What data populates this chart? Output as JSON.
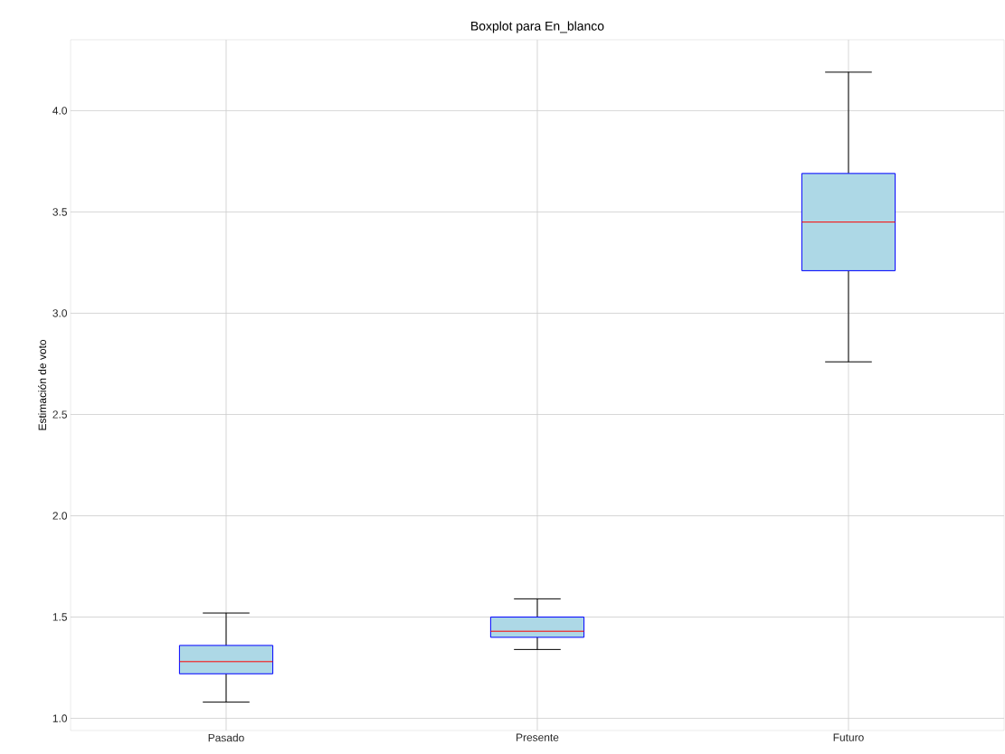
{
  "chart_data": {
    "type": "box",
    "title": "Boxplot para En_blanco",
    "ylabel": "Estimación de voto",
    "categories": [
      "Pasado",
      "Presente",
      "Futuro"
    ],
    "series": [
      {
        "color": "#add8e6",
        "boxes": [
          {
            "low": 1.08,
            "q1": 1.22,
            "median": 1.28,
            "q3": 1.36,
            "high": 1.52
          },
          {
            "low": 1.34,
            "q1": 1.4,
            "median": 1.43,
            "q3": 1.5,
            "high": 1.59
          },
          {
            "low": 2.76,
            "q1": 3.21,
            "median": 3.45,
            "q3": 3.69,
            "high": 4.19
          }
        ]
      }
    ],
    "ylim": [
      0.94,
      4.35
    ],
    "yticks": [
      {
        "value": 1.0,
        "label": "1.0"
      },
      {
        "value": 1.5,
        "label": "1.5"
      },
      {
        "value": 2.0,
        "label": "2.0"
      },
      {
        "value": 2.5,
        "label": "2.5"
      },
      {
        "value": 3.0,
        "label": "3.0"
      },
      {
        "value": 3.5,
        "label": "3.5"
      },
      {
        "value": 4.0,
        "label": "4.0"
      }
    ],
    "grid": true
  }
}
